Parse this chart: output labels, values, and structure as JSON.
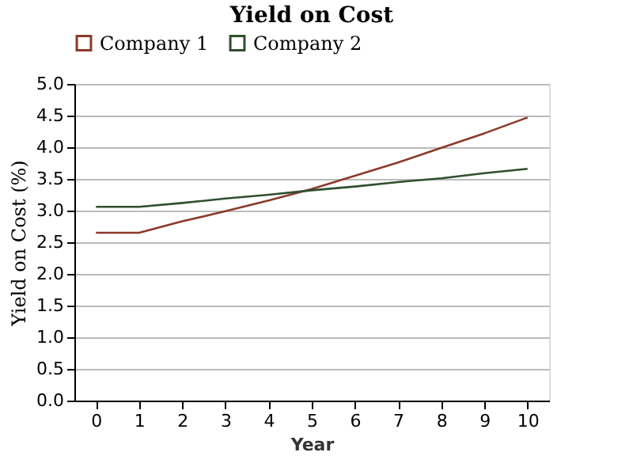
{
  "chart_data": {
    "type": "line",
    "title": "Yield on Cost",
    "xlabel": "Year",
    "ylabel": "Yield on Cost (%)",
    "x": [
      0,
      1,
      2,
      3,
      4,
      5,
      6,
      7,
      8,
      9,
      10
    ],
    "series": [
      {
        "name": "Company 1",
        "color": "#8b3a2a",
        "values": [
          2.65,
          2.65,
          2.83,
          2.99,
          3.16,
          3.34,
          3.55,
          3.76,
          3.99,
          4.22,
          4.47
        ]
      },
      {
        "name": "Company 2",
        "color": "#2f4f2f",
        "values": [
          3.06,
          3.06,
          3.12,
          3.19,
          3.25,
          3.32,
          3.38,
          3.45,
          3.51,
          3.59,
          3.66
        ]
      }
    ],
    "xlim": [
      -0.5,
      10.5
    ],
    "xticks": [
      0,
      1,
      2,
      3,
      4,
      5,
      6,
      7,
      8,
      9,
      10
    ],
    "ylim": [
      0,
      5
    ],
    "yticks": [
      {
        "value": 0,
        "label": "0.0"
      },
      {
        "value": 0.5,
        "label": "0.5"
      },
      {
        "value": 1,
        "label": "1.0"
      },
      {
        "value": 1.5,
        "label": "1.5"
      },
      {
        "value": 2,
        "label": "2.0"
      },
      {
        "value": 2.5,
        "label": "2.5"
      },
      {
        "value": 3,
        "label": "3.0"
      },
      {
        "value": 3.5,
        "label": "3.5"
      },
      {
        "value": 4,
        "label": "4.0"
      },
      {
        "value": 4.5,
        "label": "4.5"
      },
      {
        "value": 5,
        "label": "5.0"
      }
    ],
    "grid": "y",
    "legend": "top",
    "marker": "none",
    "line_style": "solid"
  }
}
